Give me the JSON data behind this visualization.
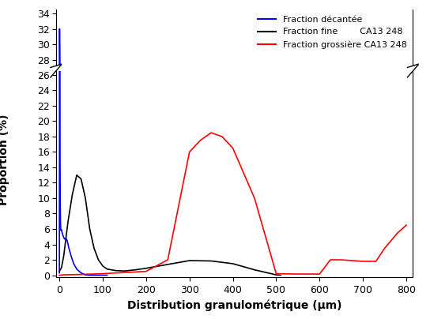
{
  "xlabel": "Distribution granulométrique (μm)",
  "ylabel": "Proportion (%)",
  "legend": [
    {
      "label": "Fraction décantée",
      "color": "#0000FF"
    },
    {
      "label": "Fraction fine        CA13 248",
      "color": "#000000"
    },
    {
      "label": "Fraction grossière CA13 248",
      "color": "#FF0000"
    }
  ],
  "blue_x": [
    0,
    0.5,
    1,
    1.5,
    2,
    2.5,
    3,
    4,
    5,
    6,
    7,
    8,
    10,
    12,
    15,
    18,
    22,
    27,
    33,
    40,
    50,
    60,
    70,
    80,
    95,
    110
  ],
  "blue_y": [
    0.3,
    32,
    28,
    15,
    9,
    7,
    6,
    5.8,
    5.9,
    5.6,
    5.4,
    5.2,
    4.9,
    4.7,
    4.8,
    4.5,
    3.5,
    2.5,
    1.5,
    0.8,
    0.3,
    0.05,
    0.0,
    0.0,
    0.0,
    0.0
  ],
  "black_x": [
    0,
    5,
    10,
    20,
    30,
    40,
    50,
    60,
    70,
    80,
    90,
    100,
    110,
    130,
    150,
    175,
    200,
    250,
    300,
    350,
    400,
    450,
    500,
    510
  ],
  "black_y": [
    0.5,
    1.0,
    2.5,
    7.0,
    10.5,
    13.0,
    12.5,
    10.0,
    6.0,
    3.5,
    2.0,
    1.2,
    0.8,
    0.6,
    0.55,
    0.7,
    0.9,
    1.4,
    1.9,
    1.85,
    1.5,
    0.7,
    0.05,
    0.0
  ],
  "red_x": [
    0,
    10,
    50,
    100,
    150,
    200,
    250,
    300,
    325,
    350,
    375,
    400,
    450,
    500,
    550,
    600,
    625,
    650,
    700,
    730,
    750,
    780,
    800
  ],
  "red_y": [
    0.0,
    0.05,
    0.1,
    0.2,
    0.35,
    0.5,
    2.0,
    16.0,
    17.5,
    18.5,
    18.0,
    16.5,
    10.0,
    0.2,
    0.15,
    0.15,
    2.0,
    2.0,
    1.8,
    1.8,
    3.5,
    5.5,
    6.5
  ],
  "yticks_upper": [
    28,
    30,
    32,
    34
  ],
  "yticks_lower": [
    0,
    2,
    4,
    6,
    8,
    10,
    12,
    14,
    16,
    18,
    20,
    22,
    24,
    26
  ],
  "xticks": [
    0,
    100,
    200,
    300,
    400,
    500,
    600,
    700,
    800
  ],
  "ylim_top_lo": 26.5,
  "ylim_bottom_lo": -0.3,
  "ylim_top_hi": 34.5,
  "ylim_bottom_hi": 27.2,
  "xlim_left": -8,
  "xlim_right": 815
}
